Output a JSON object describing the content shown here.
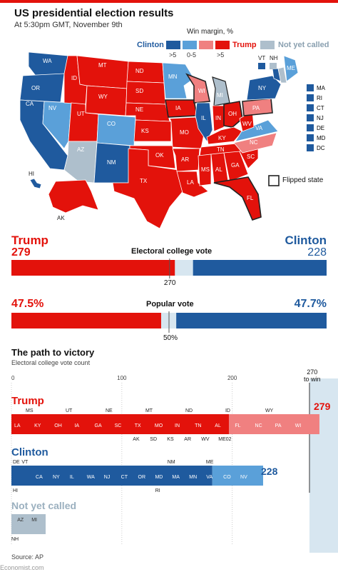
{
  "header": {
    "title": "US presidential election results",
    "subtitle": "At 5:30pm GMT, November 9th"
  },
  "legend": {
    "title": "Win margin, %",
    "clinton": "Clinton",
    "trump": "Trump",
    "not_called": "Not yet called",
    "gt5": ">5",
    "mid": "0-5",
    "gt5b": ">5",
    "flipped": "Flipped state"
  },
  "map": {
    "small_states": [
      "MA",
      "RI",
      "CT",
      "NJ",
      "DE",
      "MD",
      "DC"
    ],
    "labels_top": [
      "VT",
      "NH"
    ],
    "state_labels": [
      "WA",
      "OR",
      "CA",
      "NV",
      "ID",
      "MT",
      "WY",
      "UT",
      "AZ",
      "CO",
      "NM",
      "ND",
      "SD",
      "NE",
      "KS",
      "OK",
      "TX",
      "MN",
      "IA",
      "MO",
      "AR",
      "LA",
      "WI",
      "IL",
      "MI",
      "IN",
      "OH",
      "KY",
      "TN",
      "MS",
      "AL",
      "GA",
      "FL",
      "SC",
      "NC",
      "VA",
      "WV",
      "PA",
      "NY",
      "ME",
      "HI",
      "AK"
    ]
  },
  "electoral": {
    "label": "Electoral college vote",
    "trump_name": "Trump",
    "trump_value": "279",
    "clinton_name": "Clinton",
    "clinton_value": "228",
    "threshold": "270"
  },
  "popular": {
    "label": "Popular vote",
    "trump_value": "47.5%",
    "clinton_value": "47.7%",
    "midpoint": "50%"
  },
  "path": {
    "title": "The path to victory",
    "subtitle": "Electoral college vote count",
    "ticks": [
      "0",
      "100",
      "200"
    ],
    "to_win_value": "270",
    "to_win_label": "to win",
    "trump_name": "Trump",
    "trump_total": "279",
    "clinton_name": "Clinton",
    "clinton_total": "228",
    "not_called_name": "Not yet called",
    "trump_labels_top": [
      "MS",
      "UT",
      "NE",
      "MT",
      "ND",
      "ID",
      "WY"
    ],
    "trump_labels_inner": [
      "LA",
      "KY",
      "OH",
      "IA",
      "GA",
      "SC",
      "TX",
      "MO",
      "IN",
      "TN",
      "AL",
      "FL",
      "NC",
      "PA",
      "WI"
    ],
    "trump_labels_bottom": [
      "AK",
      "SD",
      "KS",
      "AR",
      "WV",
      "ME02"
    ],
    "clinton_labels_top": [
      "DE",
      "VT",
      "NM",
      "ME"
    ],
    "clinton_labels_inner": [
      "CA",
      "NY",
      "IL",
      "WA",
      "NJ",
      "CT",
      "OR",
      "MD",
      "MA",
      "MN",
      "VA",
      "CO",
      "NV"
    ],
    "clinton_labels_bottom": [
      "HI",
      "RI"
    ],
    "not_called_labels": [
      "AZ",
      "MI"
    ],
    "not_called_bottom": [
      "NH"
    ]
  },
  "footer": {
    "source": "Source: AP",
    "brand": "Economist.com"
  },
  "colors": {
    "clinton_dark": "#1f5a9e",
    "clinton_light": "#5aa0d9",
    "trump_light": "#f08080",
    "trump_dark": "#e3120b",
    "not_called": "#aebfcc",
    "win_line": "#d7e6f0"
  },
  "chart_data": [
    {
      "type": "bar",
      "title": "Electoral college vote",
      "series": [
        {
          "name": "Trump",
          "values": [
            279
          ]
        },
        {
          "name": "Clinton",
          "values": [
            228
          ]
        }
      ],
      "threshold": 270,
      "xlim": [
        0,
        538
      ]
    },
    {
      "type": "bar",
      "title": "Popular vote",
      "series": [
        {
          "name": "Trump",
          "values": [
            47.5
          ]
        },
        {
          "name": "Clinton",
          "values": [
            47.7
          ]
        }
      ],
      "midpoint": 50
    },
    {
      "type": "bar",
      "title": "The path to victory",
      "ylabel": "Electoral college vote count",
      "xlim": [
        0,
        300
      ],
      "threshold": 270,
      "series": [
        {
          "name": "Trump",
          "values": [
            279
          ]
        },
        {
          "name": "Clinton",
          "values": [
            228
          ]
        },
        {
          "name": "Not yet called",
          "values": [
            31
          ]
        }
      ]
    }
  ]
}
